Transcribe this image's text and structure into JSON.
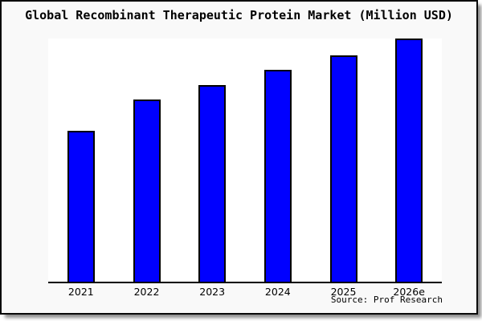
{
  "window": {
    "background_color": "#f9f9f9",
    "frame_border_color": "#0a0a0a",
    "plot_background_color": "#ffffff"
  },
  "title": "Global Recombinant Therapeutic Protein Market (Million USD)",
  "source_note": "Source: Prof Research",
  "chart_data": {
    "type": "bar",
    "title": "Global Recombinant Therapeutic Protein Market (Million USD)",
    "categories": [
      "2021",
      "2022",
      "2023",
      "2024",
      "2025",
      "2026e"
    ],
    "values": [
      62,
      75,
      81,
      87,
      93,
      100
    ],
    "value_note": "relative bar heights in % of tallest bar area; no y-axis ticks or value labels are shown in the chart",
    "xlabel": "",
    "ylabel": "",
    "ylim": [
      0,
      100
    ],
    "grid": false,
    "legend": false,
    "bar_color": "#0000ff",
    "bar_border_color": "#000000",
    "axis_line_color": "#000000"
  }
}
